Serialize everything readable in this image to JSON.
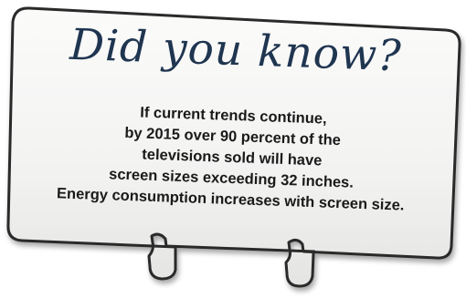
{
  "card": {
    "title": "Did you know?",
    "lines": [
      "If current trends continue,",
      "by 2015 over 90 percent of the",
      "televisions sold will have",
      "screen sizes exceeding 32 inches.",
      "Energy consumption increases with screen size."
    ]
  },
  "colors": {
    "card_fill": "#f4f4f3",
    "card_border": "#2a2a2a",
    "title": "#1f3550",
    "body": "#1a1a1a"
  }
}
